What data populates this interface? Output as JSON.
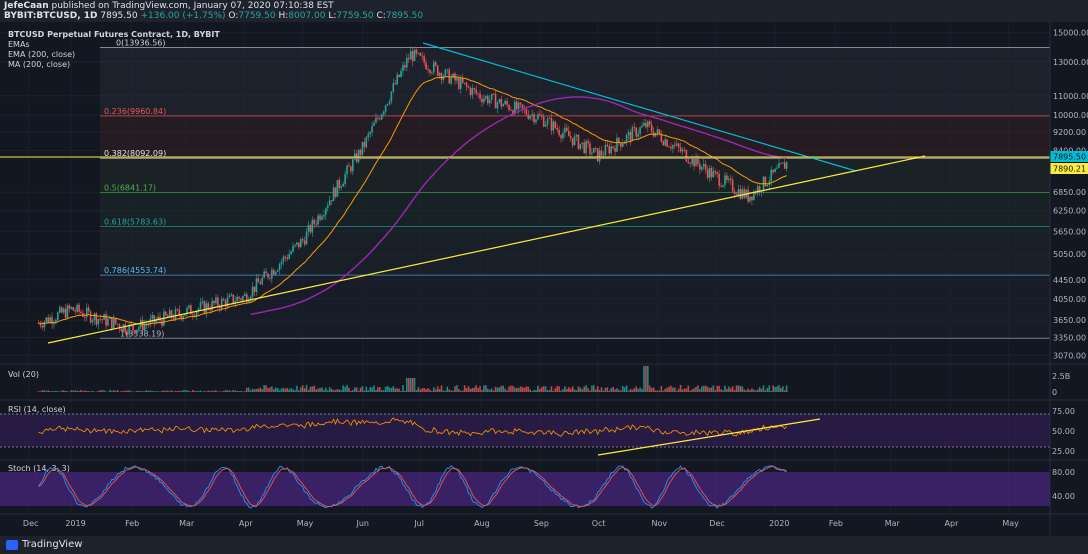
{
  "header": {
    "publisher": "JefeCaan",
    "published_text": "published on TradingView.com, January 07, 2020 07:10:38 EST",
    "symbol": "BYBIT:BTCUSD, 1D",
    "price": "7895.50",
    "change": "+136.00 (+1.75%)",
    "ohlc": {
      "o_label": "O:",
      "o": "7759.50",
      "h_label": "H:",
      "h": "8007.00",
      "l_label": "L:",
      "l": "7759.50",
      "c_label": "C:",
      "c": "7895.50"
    }
  },
  "legend": {
    "title": "BTCUSD Perpetual Futures Contract, 1D, BYBIT",
    "emas": "EMAs",
    "ema200": "EMA (200, close)",
    "ma200": "MA (200, close)"
  },
  "price_axis": [
    "15000.00",
    "13000.00",
    "11000.00",
    "10000.00",
    "9200.00",
    "8400.00",
    "6850.00",
    "6250.00",
    "5650.00",
    "5050.00",
    "4450.00",
    "4050.00",
    "3650.00",
    "3350.00",
    "3070.00"
  ],
  "price_tags": {
    "current": "7895.50",
    "ema": "7890.21"
  },
  "fib_levels": [
    {
      "label": "0(13936.56)",
      "color": "#d1d4dc"
    },
    {
      "label": "0.236(9960.84)",
      "color": "#ef5350"
    },
    {
      "label": "0.382(8092.09)",
      "color": "#e0e3eb"
    },
    {
      "label": "0.5(6841.17)",
      "color": "#4caf50"
    },
    {
      "label": "0.618(5783.63)",
      "color": "#26a69a"
    },
    {
      "label": "0.786(4553.74)",
      "color": "#64b5f6"
    },
    {
      "label": "1(3338.19)",
      "color": "#b2b5be"
    }
  ],
  "vol": {
    "label": "Vol (20)",
    "axis": [
      "2.5B",
      "0"
    ]
  },
  "rsi": {
    "label": "RSI (14, close)",
    "axis": [
      "75.00",
      "50.00",
      "25.00"
    ]
  },
  "stoch": {
    "label": "Stoch (14, 3, 3)",
    "axis": [
      "80.00",
      "40.00"
    ]
  },
  "time_axis": [
    "Dec",
    "2019",
    "Feb",
    "Mar",
    "Apr",
    "May",
    "Jun",
    "Jul",
    "Aug",
    "Sep",
    "Oct",
    "Nov",
    "Dec",
    "2020",
    "Feb",
    "Mar",
    "Apr",
    "May"
  ],
  "footer": {
    "brand": "TradingView"
  },
  "colors": {
    "bg": "#131722",
    "up": "#26a69a",
    "down": "#ef5350",
    "trend_down": "#00bcd4",
    "trend_up": "#ffeb3b",
    "ma": "#9c27b0",
    "ema": "#ff9800",
    "rsi_band": "#3b1f5f"
  },
  "chart_data": {
    "type": "line",
    "title": "BTCUSD Perpetual Futures Contract, 1D, BYBIT",
    "x": [
      "2018-12-15",
      "2019-01-01",
      "2019-02-01",
      "2019-03-01",
      "2019-04-01",
      "2019-05-01",
      "2019-06-01",
      "2019-06-26",
      "2019-08-01",
      "2019-09-01",
      "2019-10-01",
      "2019-10-26",
      "2019-12-01",
      "2019-12-18",
      "2020-01-07"
    ],
    "series": [
      {
        "name": "BTCUSD Perpetual Futures Contract",
        "values": [
          3600,
          3850,
          3500,
          3800,
          4100,
          5400,
          8500,
          13500,
          11000,
          9900,
          8200,
          9500,
          7400,
          6700,
          7895.5
        ]
      }
    ],
    "ylim": [
      3000,
      15200
    ],
    "log_scale": true
  }
}
